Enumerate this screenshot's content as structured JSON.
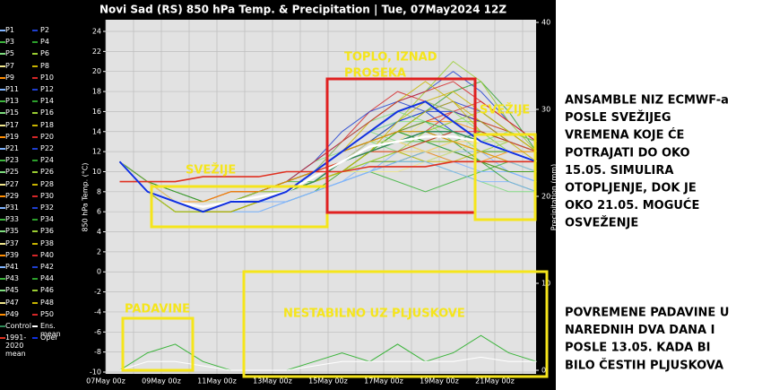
{
  "chart_data": {
    "type": "line",
    "title": "Novi Sad  (RS)  850 hPa Temp. & Precipitation | Tue, 07May2024 12Z",
    "ylabel": "850 hPa Temp. (°C)",
    "y2label": "Precipitation (mm)",
    "categories": [
      "07May 00z",
      null,
      "09May 00z",
      null,
      "11May 00z",
      null,
      "13May 00z",
      null,
      "15May 00z",
      null,
      "17May 00z",
      null,
      "19May 00z",
      null,
      "21May 00z",
      null
    ],
    "ylim": [
      -10,
      24
    ],
    "yticks": [
      -10,
      -8,
      -6,
      -4,
      -2,
      0,
      2,
      4,
      6,
      8,
      10,
      12,
      14,
      16,
      18,
      20,
      22,
      24
    ],
    "y2lim": [
      0,
      40
    ],
    "y2ticks": [
      0,
      10,
      20,
      30,
      40
    ],
    "grid": true,
    "series": [
      {
        "name": "P1",
        "color": "#7fb3ff",
        "values": [
          11,
          8,
          7,
          6,
          6,
          7,
          8,
          10,
          12,
          14,
          15,
          16,
          14,
          12,
          10,
          9
        ]
      },
      {
        "name": "P2",
        "color": "#1f3fd0",
        "values": [
          11,
          8,
          7,
          7,
          8,
          8,
          9,
          11,
          13,
          15,
          17,
          18,
          20,
          18,
          15,
          13
        ]
      },
      {
        "name": "P3",
        "color": "#3cb43c",
        "values": [
          11,
          8,
          6,
          6,
          7,
          7,
          7,
          8,
          9,
          10,
          9,
          8,
          9,
          10,
          11,
          10
        ]
      },
      {
        "name": "P4",
        "color": "#2ca02c",
        "values": [
          11,
          9,
          7,
          6,
          6,
          7,
          8,
          9,
          10,
          12,
          14,
          16,
          18,
          19,
          16,
          12
        ]
      },
      {
        "name": "P5",
        "color": "#7ddc7d",
        "values": [
          11,
          8,
          7,
          6,
          7,
          8,
          9,
          10,
          12,
          13,
          12,
          11,
          10,
          9,
          8,
          8
        ]
      },
      {
        "name": "P6",
        "color": "#9acd32",
        "values": [
          11,
          8,
          7,
          7,
          7,
          8,
          8,
          9,
          11,
          13,
          14,
          13,
          12,
          12,
          13,
          12
        ]
      },
      {
        "name": "P7",
        "color": "#f0e68c",
        "values": [
          11,
          8,
          6,
          6,
          6,
          6,
          7,
          8,
          10,
          12,
          13,
          15,
          16,
          14,
          12,
          11
        ]
      },
      {
        "name": "P8",
        "color": "#c8b400",
        "values": [
          11,
          8,
          7,
          7,
          8,
          8,
          9,
          10,
          12,
          14,
          16,
          17,
          15,
          13,
          12,
          12
        ]
      },
      {
        "name": "P9",
        "color": "#ff8c00",
        "values": [
          11,
          8,
          7,
          6,
          7,
          7,
          8,
          9,
          10,
          11,
          11,
          12,
          13,
          13,
          12,
          11
        ]
      },
      {
        "name": "P10",
        "color": "#d62728",
        "values": [
          11,
          9,
          8,
          7,
          7,
          8,
          8,
          10,
          13,
          16,
          18,
          17,
          16,
          15,
          13,
          12
        ]
      },
      {
        "name": "P11",
        "color": "#7fb3ff",
        "values": [
          11,
          8,
          7,
          6,
          6,
          6,
          7,
          8,
          9,
          11,
          12,
          12,
          11,
          10,
          10,
          9
        ]
      },
      {
        "name": "P12",
        "color": "#1f3fd0",
        "values": [
          11,
          8,
          7,
          7,
          7,
          7,
          8,
          10,
          11,
          13,
          15,
          16,
          17,
          16,
          14,
          13
        ]
      },
      {
        "name": "P13",
        "color": "#3cb43c",
        "values": [
          11,
          8,
          6,
          6,
          7,
          8,
          9,
          9,
          10,
          10,
          11,
          11,
          12,
          11,
          10,
          10
        ]
      },
      {
        "name": "P14",
        "color": "#2ca02c",
        "values": [
          11,
          8,
          7,
          6,
          6,
          7,
          7,
          8,
          10,
          12,
          14,
          14,
          13,
          11,
          9,
          8
        ]
      },
      {
        "name": "P15",
        "color": "#7ddc7d",
        "values": [
          11,
          8,
          7,
          7,
          7,
          8,
          9,
          11,
          12,
          14,
          13,
          12,
          12,
          13,
          14,
          13
        ]
      },
      {
        "name": "P16",
        "color": "#9acd32",
        "values": [
          11,
          9,
          7,
          6,
          7,
          7,
          8,
          9,
          11,
          13,
          15,
          18,
          21,
          19,
          15,
          12
        ]
      },
      {
        "name": "P17",
        "color": "#f0e68c",
        "values": [
          11,
          8,
          7,
          6,
          6,
          7,
          8,
          9,
          10,
          11,
          12,
          13,
          14,
          12,
          11,
          10
        ]
      },
      {
        "name": "P18",
        "color": "#c8b400",
        "values": [
          11,
          8,
          7,
          7,
          8,
          8,
          8,
          9,
          11,
          12,
          12,
          11,
          11,
          12,
          12,
          11
        ]
      },
      {
        "name": "P19",
        "color": "#ff8c00",
        "values": [
          11,
          8,
          6,
          6,
          6,
          7,
          8,
          10,
          12,
          13,
          14,
          15,
          15,
          14,
          13,
          12
        ]
      },
      {
        "name": "P20",
        "color": "#d62728",
        "values": [
          11,
          8,
          7,
          6,
          7,
          8,
          9,
          10,
          11,
          12,
          13,
          14,
          16,
          17,
          15,
          13
        ]
      },
      {
        "name": "P21",
        "color": "#7fb3ff",
        "values": [
          11,
          8,
          7,
          6,
          7,
          7,
          7,
          8,
          9,
          10,
          12,
          13,
          12,
          11,
          10,
          9
        ]
      },
      {
        "name": "P22",
        "color": "#1f3fd0",
        "values": [
          11,
          8,
          7,
          7,
          7,
          8,
          9,
          11,
          14,
          16,
          17,
          16,
          14,
          13,
          12,
          11
        ]
      },
      {
        "name": "P23",
        "color": "#3cb43c",
        "values": [
          11,
          9,
          8,
          7,
          7,
          7,
          8,
          9,
          10,
          11,
          11,
          12,
          12,
          11,
          11,
          10
        ]
      },
      {
        "name": "P24",
        "color": "#2ca02c",
        "values": [
          11,
          8,
          7,
          6,
          6,
          7,
          8,
          9,
          11,
          13,
          14,
          13,
          13,
          14,
          13,
          12
        ]
      },
      {
        "name": "P25",
        "color": "#7ddc7d",
        "values": [
          11,
          8,
          7,
          6,
          7,
          7,
          8,
          10,
          12,
          14,
          15,
          15,
          14,
          12,
          11,
          10
        ]
      },
      {
        "name": "P26",
        "color": "#9acd32",
        "values": [
          11,
          8,
          6,
          6,
          7,
          8,
          8,
          9,
          10,
          12,
          13,
          14,
          15,
          15,
          14,
          13
        ]
      },
      {
        "name": "P27",
        "color": "#f0e68c",
        "values": [
          11,
          8,
          7,
          7,
          7,
          7,
          8,
          9,
          10,
          10,
          10,
          11,
          12,
          12,
          11,
          10
        ]
      },
      {
        "name": "P28",
        "color": "#c8b400",
        "values": [
          11,
          8,
          7,
          6,
          6,
          7,
          8,
          10,
          12,
          15,
          17,
          19,
          17,
          14,
          12,
          11
        ]
      },
      {
        "name": "P29",
        "color": "#ff8c00",
        "values": [
          11,
          8,
          7,
          6,
          7,
          8,
          9,
          10,
          11,
          12,
          12,
          12,
          12,
          11,
          10,
          10
        ]
      },
      {
        "name": "P30",
        "color": "#d62728",
        "values": [
          11,
          9,
          7,
          7,
          8,
          8,
          9,
          10,
          12,
          13,
          14,
          15,
          16,
          15,
          14,
          12
        ]
      },
      {
        "name": "P31",
        "color": "#7fb3ff",
        "values": [
          11,
          8,
          7,
          6,
          6,
          6,
          7,
          8,
          9,
          10,
          11,
          11,
          10,
          9,
          9,
          8
        ]
      },
      {
        "name": "P32",
        "color": "#1f3fd0",
        "values": [
          11,
          8,
          7,
          7,
          7,
          8,
          8,
          9,
          11,
          13,
          15,
          16,
          16,
          15,
          13,
          12
        ]
      },
      {
        "name": "P33",
        "color": "#3cb43c",
        "values": [
          11,
          8,
          6,
          6,
          7,
          7,
          8,
          9,
          10,
          12,
          13,
          13,
          14,
          13,
          12,
          11
        ]
      },
      {
        "name": "P34",
        "color": "#2ca02c",
        "values": [
          11,
          8,
          7,
          6,
          7,
          8,
          9,
          10,
          12,
          13,
          13,
          14,
          13,
          12,
          12,
          11
        ]
      },
      {
        "name": "P35",
        "color": "#7ddc7d",
        "values": [
          11,
          8,
          7,
          7,
          7,
          7,
          8,
          10,
          13,
          15,
          16,
          15,
          13,
          12,
          11,
          11
        ]
      },
      {
        "name": "P36",
        "color": "#9acd32",
        "values": [
          11,
          8,
          7,
          6,
          6,
          7,
          8,
          9,
          10,
          11,
          12,
          14,
          15,
          16,
          14,
          12
        ]
      },
      {
        "name": "P37",
        "color": "#f0e68c",
        "values": [
          11,
          9,
          7,
          6,
          7,
          8,
          8,
          9,
          11,
          12,
          12,
          12,
          13,
          13,
          12,
          11
        ]
      },
      {
        "name": "P38",
        "color": "#c8b400",
        "values": [
          11,
          8,
          7,
          7,
          7,
          7,
          8,
          9,
          10,
          12,
          14,
          16,
          17,
          15,
          13,
          11
        ]
      },
      {
        "name": "P39",
        "color": "#ff8c00",
        "values": [
          11,
          8,
          6,
          6,
          6,
          7,
          8,
          10,
          11,
          12,
          13,
          12,
          11,
          11,
          12,
          12
        ]
      },
      {
        "name": "P40",
        "color": "#d62728",
        "values": [
          11,
          8,
          7,
          6,
          7,
          8,
          9,
          11,
          13,
          15,
          17,
          18,
          19,
          17,
          15,
          13
        ]
      },
      {
        "name": "P41",
        "color": "#7fb3ff",
        "values": [
          11,
          8,
          7,
          7,
          7,
          7,
          7,
          8,
          9,
          10,
          11,
          12,
          12,
          12,
          11,
          10
        ]
      },
      {
        "name": "P42",
        "color": "#1f3fd0",
        "values": [
          11,
          8,
          7,
          6,
          7,
          7,
          8,
          9,
          11,
          12,
          13,
          14,
          14,
          13,
          12,
          11
        ]
      },
      {
        "name": "P43",
        "color": "#3cb43c",
        "values": [
          11,
          8,
          7,
          6,
          6,
          7,
          8,
          9,
          10,
          12,
          14,
          15,
          14,
          13,
          13,
          12
        ]
      },
      {
        "name": "P44",
        "color": "#2ca02c",
        "values": [
          11,
          9,
          8,
          7,
          7,
          8,
          9,
          10,
          12,
          13,
          14,
          13,
          12,
          11,
          10,
          10
        ]
      },
      {
        "name": "P45",
        "color": "#7ddc7d",
        "values": [
          11,
          8,
          7,
          6,
          7,
          7,
          8,
          10,
          12,
          14,
          16,
          17,
          16,
          14,
          12,
          11
        ]
      },
      {
        "name": "P46",
        "color": "#9acd32",
        "values": [
          11,
          8,
          6,
          6,
          7,
          8,
          8,
          9,
          10,
          11,
          12,
          13,
          13,
          12,
          11,
          11
        ]
      },
      {
        "name": "P47",
        "color": "#f0e68c",
        "values": [
          11,
          8,
          7,
          7,
          7,
          7,
          8,
          9,
          11,
          13,
          13,
          12,
          12,
          13,
          13,
          12
        ]
      },
      {
        "name": "P48",
        "color": "#c8b400",
        "values": [
          11,
          8,
          7,
          6,
          6,
          7,
          8,
          9,
          10,
          12,
          15,
          17,
          18,
          16,
          14,
          12
        ]
      },
      {
        "name": "P49",
        "color": "#ff8c00",
        "values": [
          11,
          8,
          7,
          7,
          8,
          8,
          9,
          10,
          12,
          13,
          14,
          14,
          13,
          12,
          11,
          11
        ]
      },
      {
        "name": "P50",
        "color": "#d62728",
        "values": [
          11,
          8,
          7,
          6,
          7,
          7,
          8,
          10,
          11,
          12,
          12,
          13,
          14,
          14,
          13,
          12
        ]
      },
      {
        "name": "Control",
        "color": "#2e8b57",
        "values": [
          11,
          8,
          7,
          6,
          7,
          7,
          8,
          9,
          11,
          12,
          13,
          14,
          14,
          13,
          12,
          11
        ]
      },
      {
        "name": "Ens. mean",
        "color": "#ffffff",
        "values": [
          11,
          8,
          7,
          6.5,
          7,
          7.5,
          8,
          9.5,
          11,
          12.5,
          13,
          13.5,
          13.5,
          13,
          12,
          11
        ]
      },
      {
        "name": "1991-2020 mean",
        "color": "#e03020",
        "values": [
          9,
          9,
          9,
          9.5,
          9.5,
          9.5,
          10,
          10,
          10,
          10.5,
          10.5,
          10.5,
          11,
          11,
          11,
          11
        ]
      },
      {
        "name": "Oper",
        "color": "#1030e0",
        "values": [
          11,
          8,
          7,
          6,
          7,
          7,
          8,
          10,
          12,
          14,
          16,
          17,
          15,
          13,
          12,
          11
        ]
      },
      {
        "axis": "y2",
        "color": "#3cb43c",
        "values": [
          0,
          2,
          3,
          1,
          0,
          0,
          0,
          1,
          2,
          1,
          3,
          1,
          2,
          4,
          2,
          1
        ]
      },
      {
        "axis": "y2",
        "color": "#ffffff",
        "values": [
          0,
          1,
          1,
          0.5,
          0,
          0,
          0,
          0.5,
          1,
          1,
          1,
          1,
          1,
          1.5,
          1,
          1
        ]
      }
    ],
    "annotations": [
      "SVEŽIJE",
      "TOPLO, IZNAD",
      "PROSEKA",
      "SVEŽIJE",
      "PADAVINE",
      "NESTABILNO UZ PLJUSKOVE"
    ]
  },
  "notes": [
    [
      "ANSAMBLE NIZ ECMWF-a",
      "POSLE SVEŽIJEG",
      "VREMENA KOJE ĆE",
      "POTRAJATI DO OKO",
      "15.05. SIMULIRA",
      "OTOPLJENJE, DOK JE",
      "OKO 21.05. MOGUĆE",
      "OSVEŽENJE"
    ],
    [
      "POVREMENE PADAVINE U",
      "NAREDNIH DVA DANA I",
      "POSLE 13.05. KADA BI",
      "BILO ČESTIH PLJUSKOVA"
    ]
  ]
}
